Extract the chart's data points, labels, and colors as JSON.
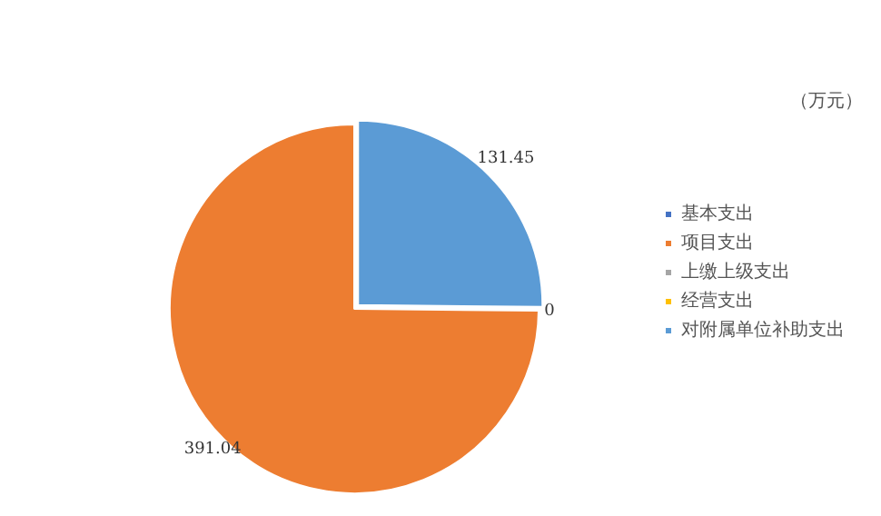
{
  "chart_data": {
    "type": "pie",
    "title": "（万元）",
    "categories": [
      "基本支出",
      "项目支出",
      "上缴上级支出",
      "经营支出",
      "对附属单位补助支出"
    ],
    "values": [
      0,
      391.04,
      0,
      0,
      131.45
    ],
    "colors": [
      "#4472c4",
      "#ed7d31",
      "#a5a5a5",
      "#ffc000",
      "#5b9bd5"
    ],
    "value_labels": [
      "0",
      "391.04",
      null,
      null,
      "131.45"
    ],
    "legend": "right"
  }
}
